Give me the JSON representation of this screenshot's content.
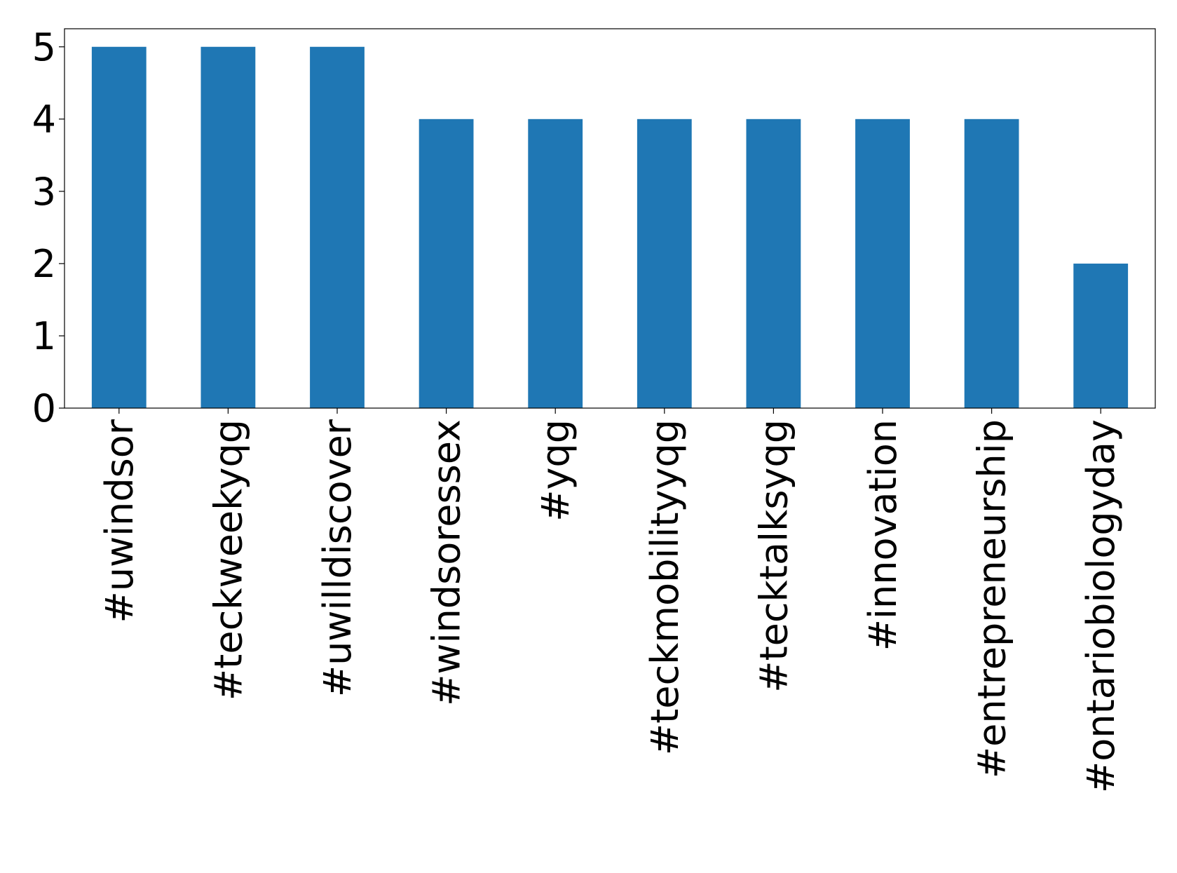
{
  "chart_data": {
    "type": "bar",
    "categories": [
      "#uwindsor",
      "#teckweekyqg",
      "#uwilldiscover",
      "#windsoressex",
      "#yqg",
      "#teckmobilityyqg",
      "#tecktalksyqg",
      "#innovation",
      "#entrepreneurship",
      "#ontariobiologyday"
    ],
    "values": [
      5,
      5,
      5,
      4,
      4,
      4,
      4,
      4,
      4,
      2
    ],
    "color": "#1f77b4",
    "ylim": [
      0,
      5.25
    ],
    "yticks": [
      0,
      1,
      2,
      3,
      4,
      5
    ],
    "grid": false
  }
}
